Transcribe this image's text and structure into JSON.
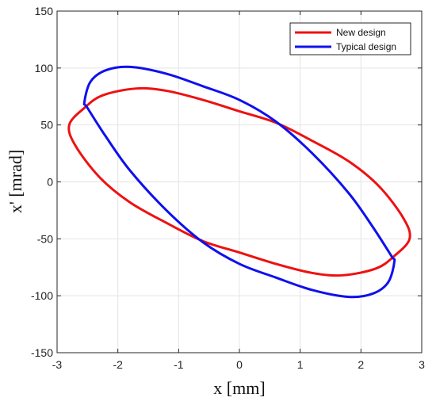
{
  "chart_data": {
    "type": "line",
    "title": "",
    "xlabel": "x [mm]",
    "ylabel": "x' [mrad]",
    "xlim": [
      -3,
      3
    ],
    "ylim": [
      -150,
      150
    ],
    "xticks": [
      -3,
      -2,
      -1,
      0,
      1,
      2,
      3
    ],
    "yticks": [
      -150,
      -100,
      -50,
      0,
      50,
      100,
      150
    ],
    "grid": true,
    "legend_position": "top-right",
    "series": [
      {
        "name": "New design",
        "color": "#ee1111",
        "points": [
          [
            2.8,
            -50
          ],
          [
            2.55,
            -65
          ],
          [
            2.25,
            -76
          ],
          [
            1.7,
            -82
          ],
          [
            1.2,
            -80
          ],
          [
            0.6,
            -72
          ],
          [
            0.0,
            -62
          ],
          [
            -0.6,
            -52
          ],
          [
            -1.2,
            -36
          ],
          [
            -1.8,
            -18
          ],
          [
            -2.3,
            4
          ],
          [
            -2.7,
            32
          ],
          [
            -2.8,
            50
          ],
          [
            -2.55,
            65
          ],
          [
            -2.25,
            76
          ],
          [
            -1.7,
            82
          ],
          [
            -1.2,
            80
          ],
          [
            -0.6,
            72
          ],
          [
            0.0,
            62
          ],
          [
            0.6,
            52
          ],
          [
            1.2,
            36
          ],
          [
            1.8,
            18
          ],
          [
            2.3,
            -4
          ],
          [
            2.7,
            -32
          ],
          [
            2.8,
            -50
          ]
        ]
      },
      {
        "name": "Typical design",
        "color": "#1010ee",
        "points": [
          [
            2.55,
            -70
          ],
          [
            2.45,
            -88
          ],
          [
            2.2,
            -98
          ],
          [
            1.8,
            -101
          ],
          [
            1.2,
            -95
          ],
          [
            0.6,
            -84
          ],
          [
            0.0,
            -72
          ],
          [
            -0.6,
            -53
          ],
          [
            -1.2,
            -25
          ],
          [
            -1.8,
            10
          ],
          [
            -2.2,
            40
          ],
          [
            -2.5,
            65
          ],
          [
            -2.55,
            70
          ],
          [
            -2.45,
            88
          ],
          [
            -2.2,
            98
          ],
          [
            -1.8,
            101
          ],
          [
            -1.2,
            95
          ],
          [
            -0.6,
            84
          ],
          [
            0.0,
            72
          ],
          [
            0.6,
            53
          ],
          [
            1.2,
            25
          ],
          [
            1.8,
            -10
          ],
          [
            2.2,
            -40
          ],
          [
            2.5,
            -65
          ],
          [
            2.55,
            -70
          ]
        ]
      }
    ]
  }
}
